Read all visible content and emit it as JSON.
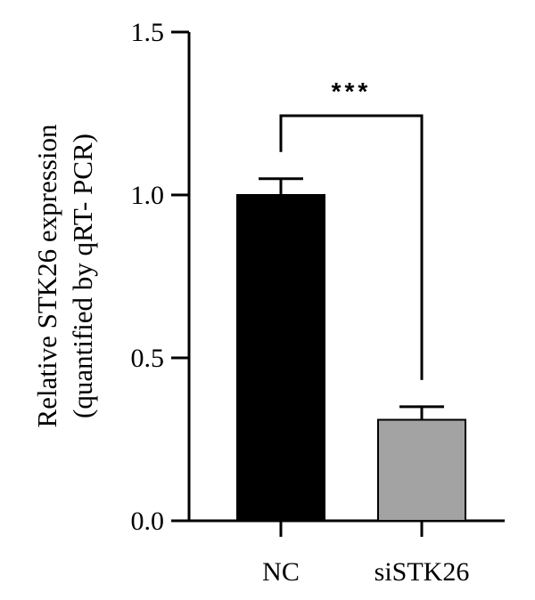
{
  "chart_data": {
    "type": "bar",
    "categories": [
      "NC",
      "siSTK26"
    ],
    "values": [
      1.0,
      0.31
    ],
    "error": [
      0.05,
      0.04
    ],
    "bar_colors": [
      "#000000",
      "#a3a3a3"
    ],
    "ylim": [
      0,
      1.5
    ],
    "yticks": [
      0.0,
      0.5,
      1.0,
      1.5
    ],
    "ytick_labels": [
      "0.0",
      "0.5",
      "1.0",
      "1.5"
    ],
    "ylabel": [
      "Relative STK26 expression",
      "(quantified by qRT- PCR)"
    ],
    "xlabel": "",
    "grid": false,
    "significance": {
      "between": [
        "NC",
        "siSTK26"
      ],
      "label": "***"
    }
  }
}
